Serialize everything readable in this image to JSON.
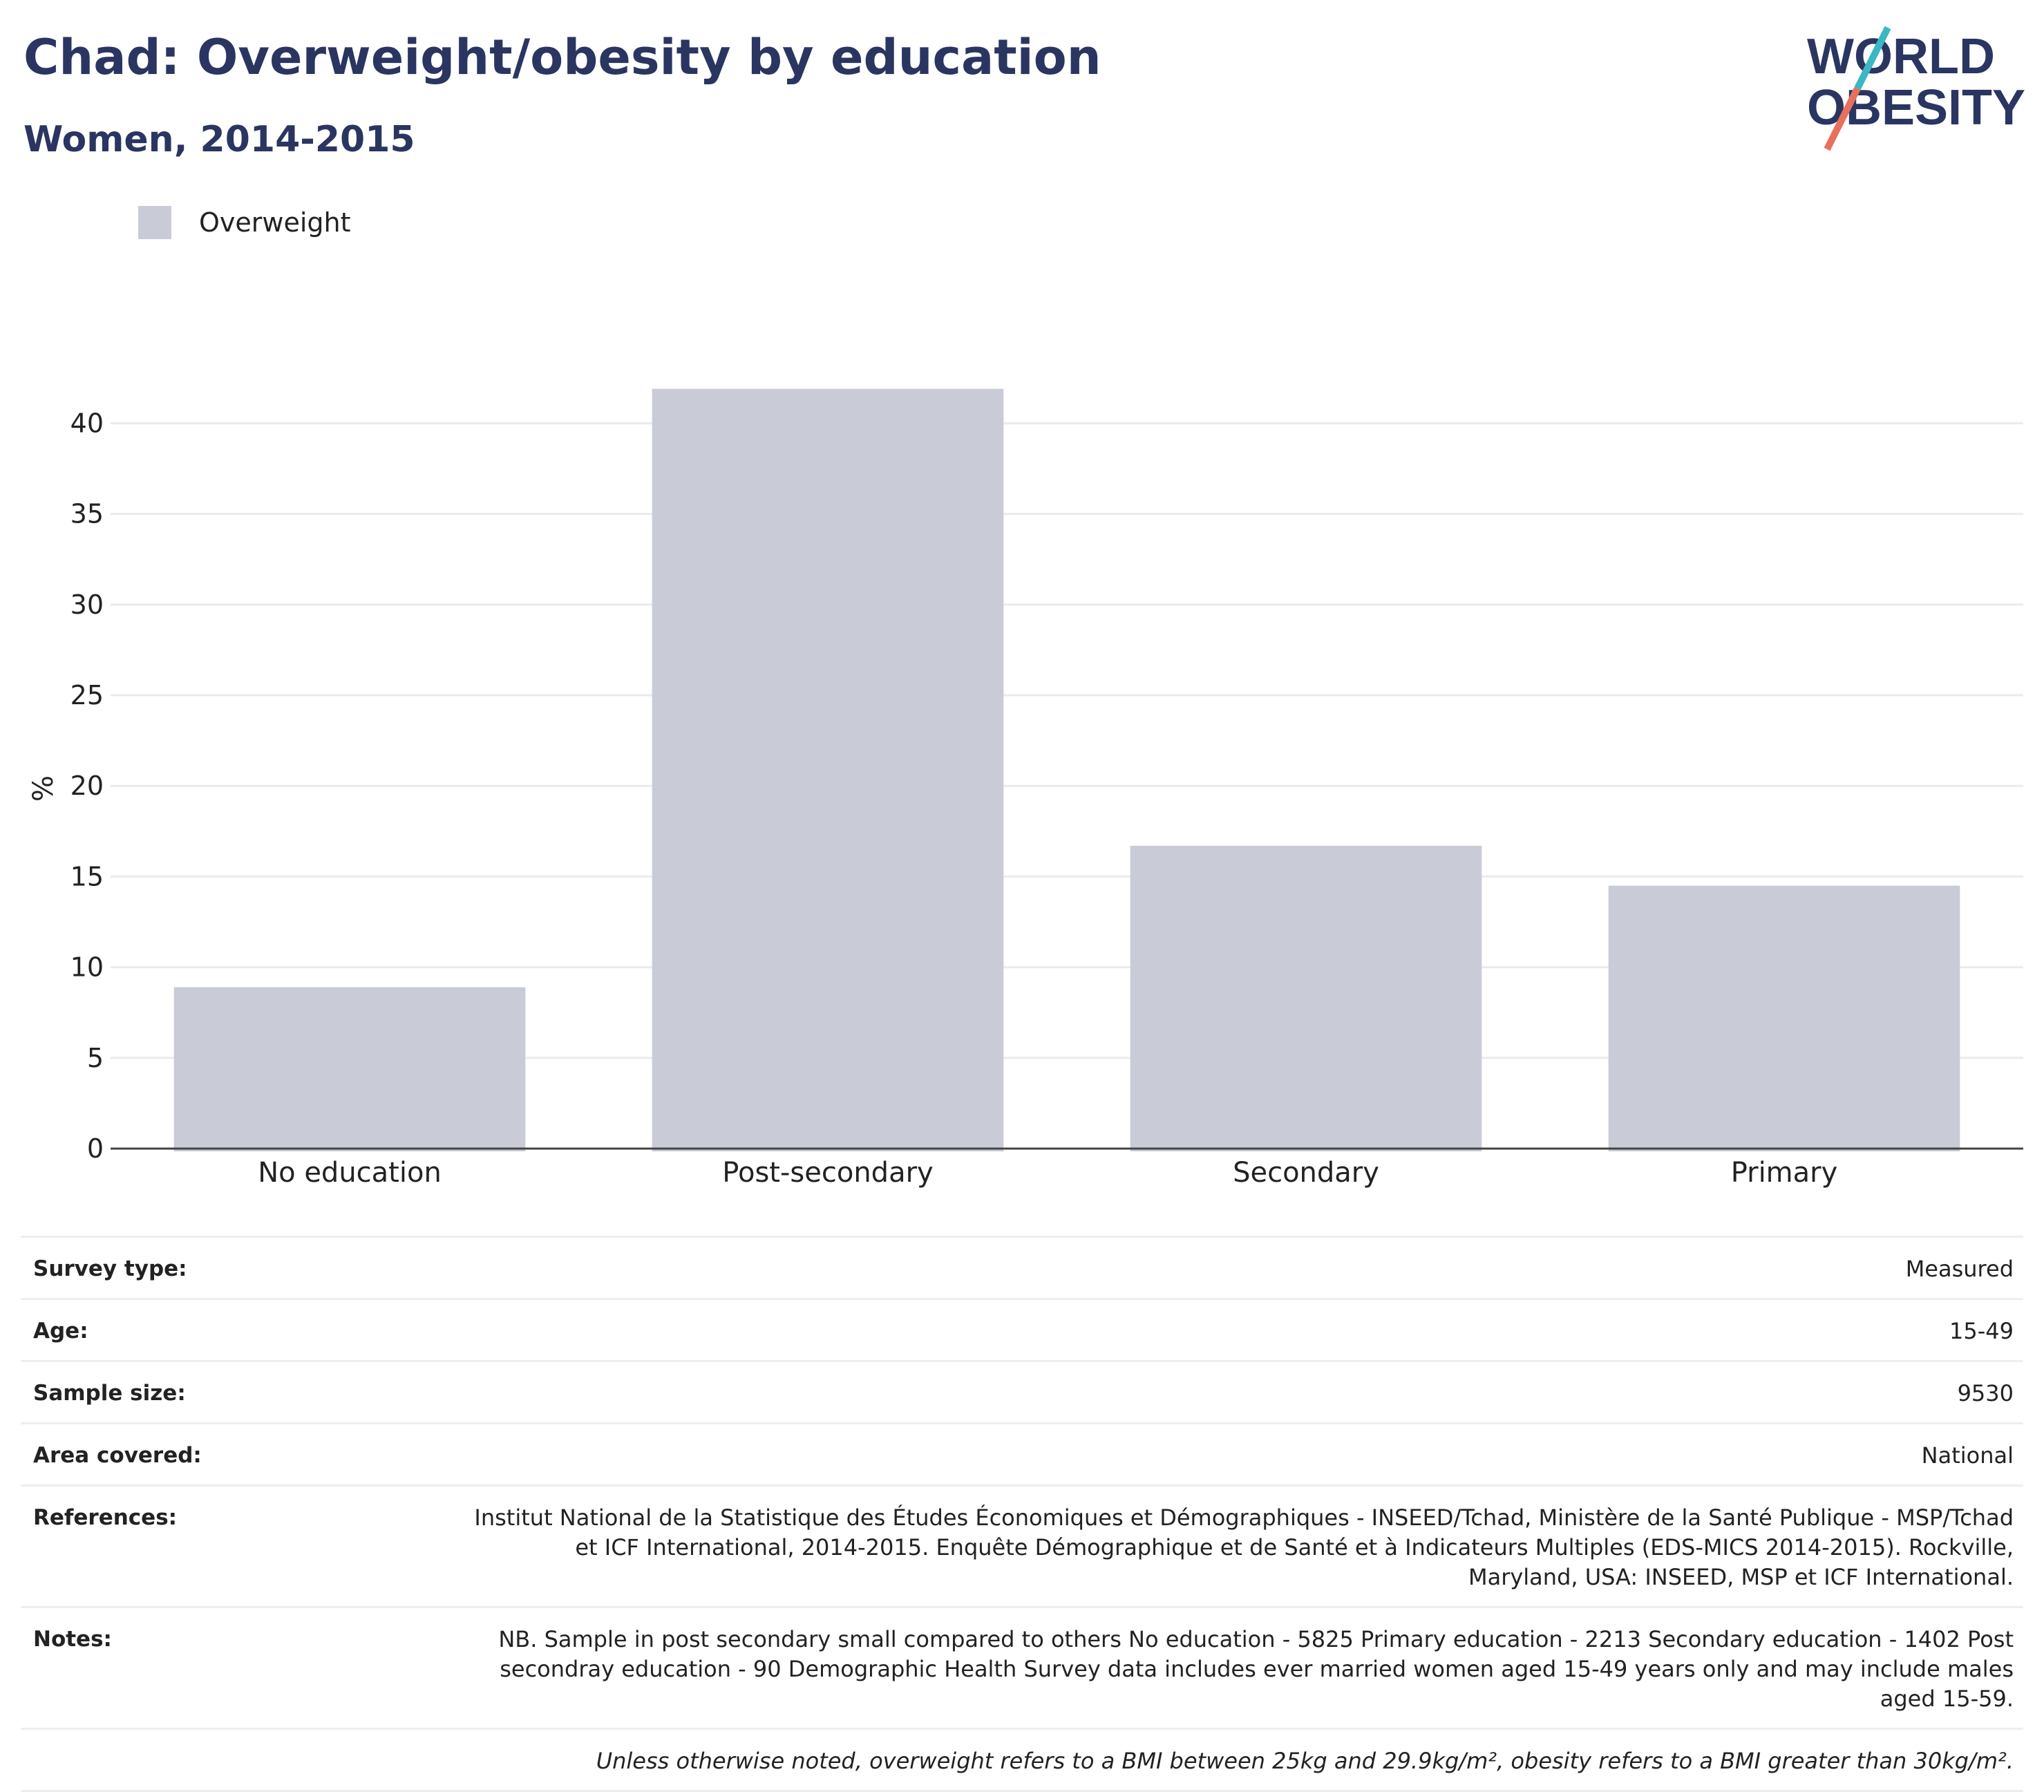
{
  "header": {
    "title": "Chad: Overweight/obesity by education",
    "subtitle": "Women, 2014-2015"
  },
  "logo": {
    "line1": "WORLD",
    "line2": "OBESITY"
  },
  "legend": {
    "label": "Overweight",
    "color": "#c9cbd7"
  },
  "chart_data": {
    "type": "bar",
    "categories": [
      "No education",
      "Post-secondary",
      "Secondary",
      "Primary"
    ],
    "series": [
      {
        "name": "Overweight",
        "values": [
          8.9,
          41.9,
          16.7,
          14.5
        ]
      }
    ],
    "ylabel": "%",
    "xlabel": "",
    "ylim": [
      0,
      42
    ],
    "yticks": [
      0,
      5,
      10,
      15,
      20,
      25,
      30,
      35,
      40
    ],
    "grid": true,
    "legend_position": "top-left",
    "bar_color": "#c9cbd7"
  },
  "info": {
    "survey_type": {
      "key": "Survey type:",
      "value": "Measured"
    },
    "age": {
      "key": "Age:",
      "value": "15-49"
    },
    "sample_size": {
      "key": "Sample size:",
      "value": "9530"
    },
    "area": {
      "key": "Area covered:",
      "value": "National"
    },
    "references": {
      "key": "References:",
      "value": "Institut National de la Statistique des Études Économiques et Démographiques - INSEED/Tchad, Ministère de la Santé Publique - MSP/Tchad et ICF International, 2014-2015. Enquête Démographique et de Santé et à Indicateurs Multiples (EDS-MICS 2014-2015). Rockville, Maryland, USA: INSEED, MSP et ICF International."
    },
    "notes": {
      "key": "Notes:",
      "value": "NB. Sample in post secondary small compared to others No education - 5825 Primary education - 2213 Secondary education - 1402 Post secondray education - 90 Demographic Health Survey data includes ever married women aged 15-49 years only and may include males aged 15-59."
    },
    "footnote": "Unless otherwise noted, overweight refers to a BMI between 25kg and 29.9kg/m², obesity refers to a BMI greater than 30kg/m²."
  }
}
